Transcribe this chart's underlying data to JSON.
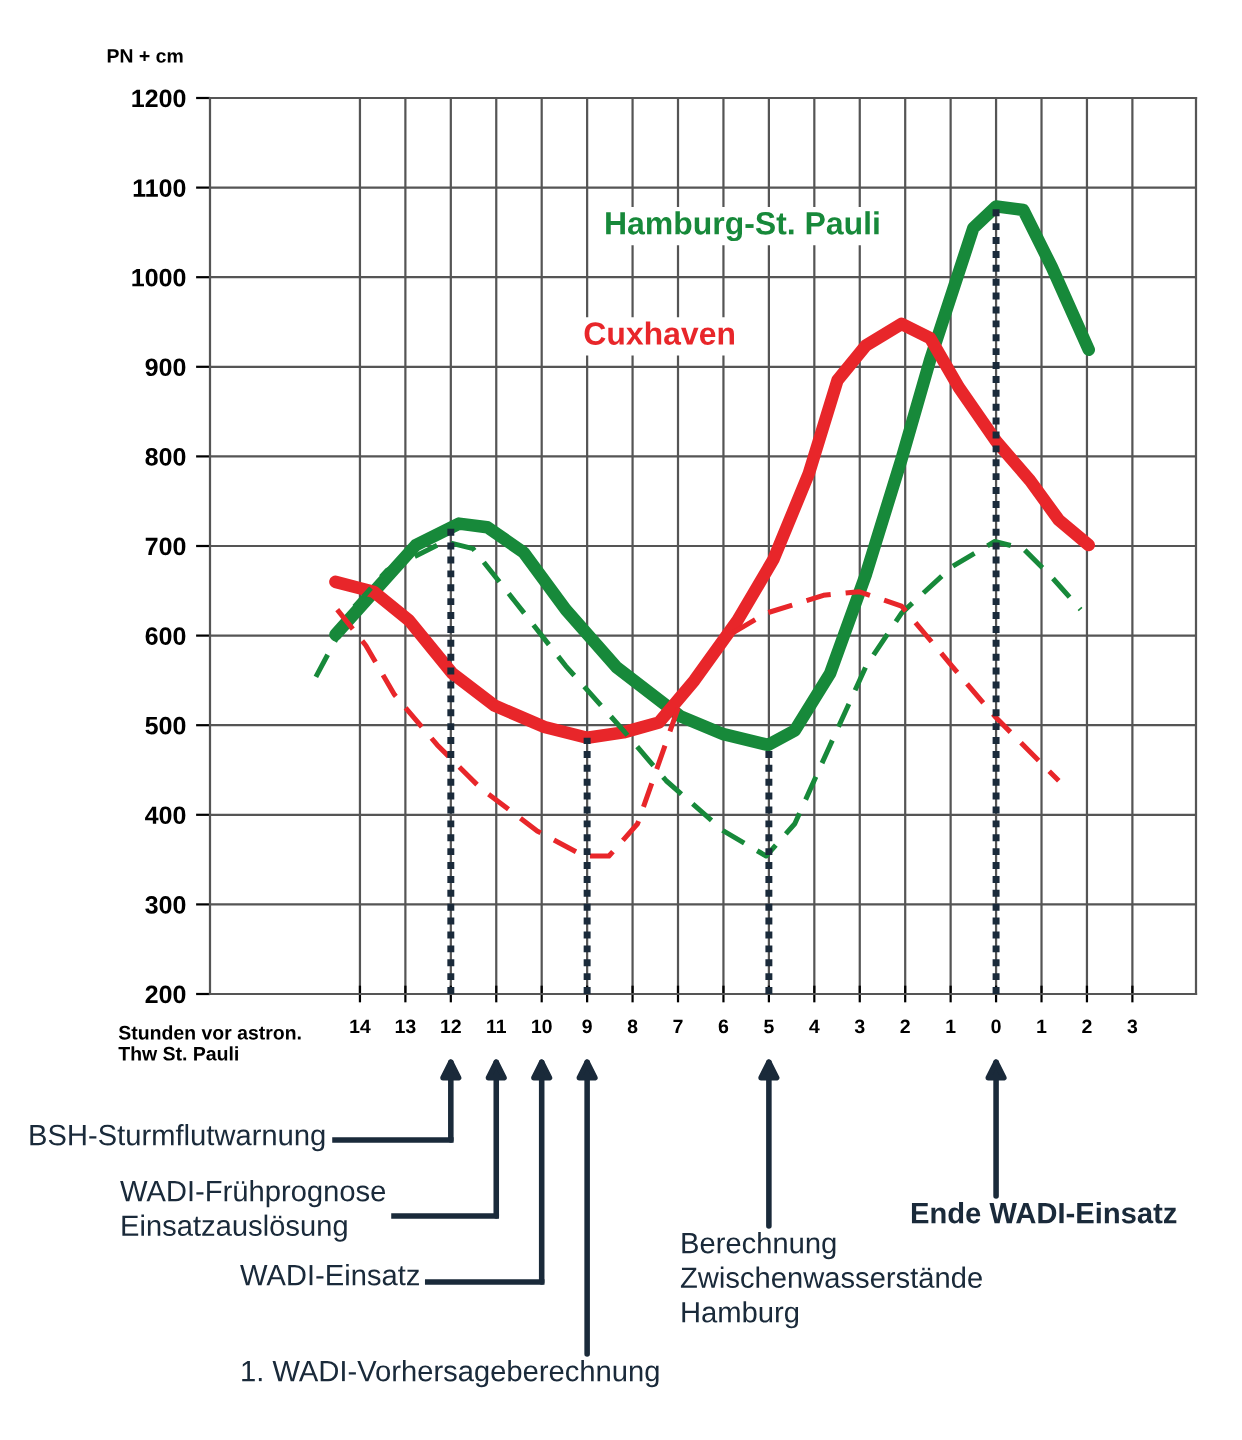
{
  "chart_data": {
    "type": "line",
    "xlabel": "Stunden vor astron.\nThw St. Pauli",
    "ylabel": "PN + cm",
    "xlim": [
      -17.3,
      4.4
    ],
    "ylim": [
      200,
      1200
    ],
    "xticks": [
      {
        "value": -14,
        "label": "14"
      },
      {
        "value": -13,
        "label": "13"
      },
      {
        "value": -12,
        "label": "12"
      },
      {
        "value": -11,
        "label": "11"
      },
      {
        "value": -10,
        "label": "10"
      },
      {
        "value": -9,
        "label": "9"
      },
      {
        "value": -8,
        "label": "8"
      },
      {
        "value": -7,
        "label": "7"
      },
      {
        "value": -6,
        "label": "6"
      },
      {
        "value": -5,
        "label": "5"
      },
      {
        "value": -4,
        "label": "4"
      },
      {
        "value": -3,
        "label": "3"
      },
      {
        "value": -2,
        "label": "2"
      },
      {
        "value": -1,
        "label": "1"
      },
      {
        "value": 0,
        "label": "0"
      },
      1,
      2,
      3
    ],
    "yticks": [
      200,
      300,
      400,
      500,
      600,
      700,
      800,
      900,
      1000,
      1100,
      1200
    ],
    "grid": true,
    "marker": "none",
    "series": [
      {
        "name": "Hamburg-St. Pauli",
        "color": "#17893a",
        "line_style": "solid",
        "x": [
          -14.54,
          -13.55,
          -12.77,
          -11.82,
          -11.2,
          -10.4,
          -9.47,
          -8.36,
          -6.95,
          -6.0,
          -5.02,
          -4.43,
          -3.65,
          -2.86,
          -2.08,
          -1.45,
          -0.5,
          0.0,
          0.6,
          1.23,
          2.04
        ],
        "values": [
          601,
          657,
          701,
          725,
          721,
          693,
          629,
          565,
          510,
          490,
          478,
          494,
          558,
          669,
          797,
          908,
          1055,
          1079,
          1075,
          1011,
          919
        ]
      },
      {
        "name": "Cuxhaven",
        "color": "#e8262a",
        "line_style": "solid",
        "x": [
          -14.54,
          -13.7,
          -12.92,
          -11.97,
          -11.04,
          -9.94,
          -9.0,
          -8.2,
          -7.42,
          -6.64,
          -5.69,
          -4.9,
          -4.12,
          -3.49,
          -2.86,
          -2.08,
          -1.45,
          -0.82,
          0.0,
          0.75,
          1.38,
          2.04
        ],
        "values": [
          660,
          649,
          617,
          558,
          522,
          498,
          486,
          492,
          503,
          550,
          617,
          685,
          781,
          885,
          924,
          948,
          932,
          877,
          817,
          773,
          729,
          701
        ]
      },
      {
        "color": "#17893a",
        "line_style": "dashed",
        "x": [
          -14.97,
          -14.18,
          -13.4,
          -12.14,
          -11.51,
          -10.57,
          -9.47,
          -8.2,
          -7.26,
          -6.0,
          -5.06,
          -4.43,
          -3.65,
          -2.86,
          -2.08,
          -0.97,
          -0.03,
          0.6,
          1.23,
          1.86
        ],
        "values": [
          554,
          629,
          673,
          705,
          697,
          637,
          566,
          494,
          438,
          382,
          354,
          390,
          478,
          566,
          625,
          677,
          705,
          697,
          665,
          629
        ]
      },
      {
        "color": "#e8262a",
        "line_style": "dashed",
        "x": [
          -14.5,
          -13.87,
          -13.24,
          -12.3,
          -11.35,
          -10.1,
          -9.07,
          -8.52,
          -7.89,
          -6.95,
          -6.0,
          -5.06,
          -3.8,
          -3.02,
          -2.08,
          -0.97,
          -0.03,
          0.75,
          1.38
        ],
        "values": [
          629,
          589,
          534,
          478,
          430,
          382,
          354,
          354,
          390,
          526,
          597,
          625,
          645,
          649,
          633,
          566,
          510,
          470,
          438
        ]
      },
      {
        "color": "#1a2a3a",
        "line_style": "dotted",
        "x": [
          -12,
          -12
        ],
        "values": [
          200,
          725
        ]
      },
      {
        "color": "#1a2a3a",
        "line_style": "dotted",
        "x": [
          -9,
          -9
        ],
        "values": [
          200,
          486
        ]
      },
      {
        "color": "#1a2a3a",
        "line_style": "dotted",
        "x": [
          -5,
          -5
        ],
        "values": [
          200,
          478
        ]
      },
      {
        "color": "#1a2a3a",
        "line_style": "dotted",
        "x": [
          0,
          0
        ],
        "values": [
          200,
          1079
        ]
      }
    ],
    "annotations": [
      "BSH-Sturmflutwarnung",
      "WADI-Frühprognose\nEinsatzauslösung",
      "WADI-Einsatz",
      "1. WADI-Vorhersageberechnung",
      "Berechnung\nZwischenwasserstände\nHamburg",
      "Ende WADI-Einsatz"
    ]
  }
}
